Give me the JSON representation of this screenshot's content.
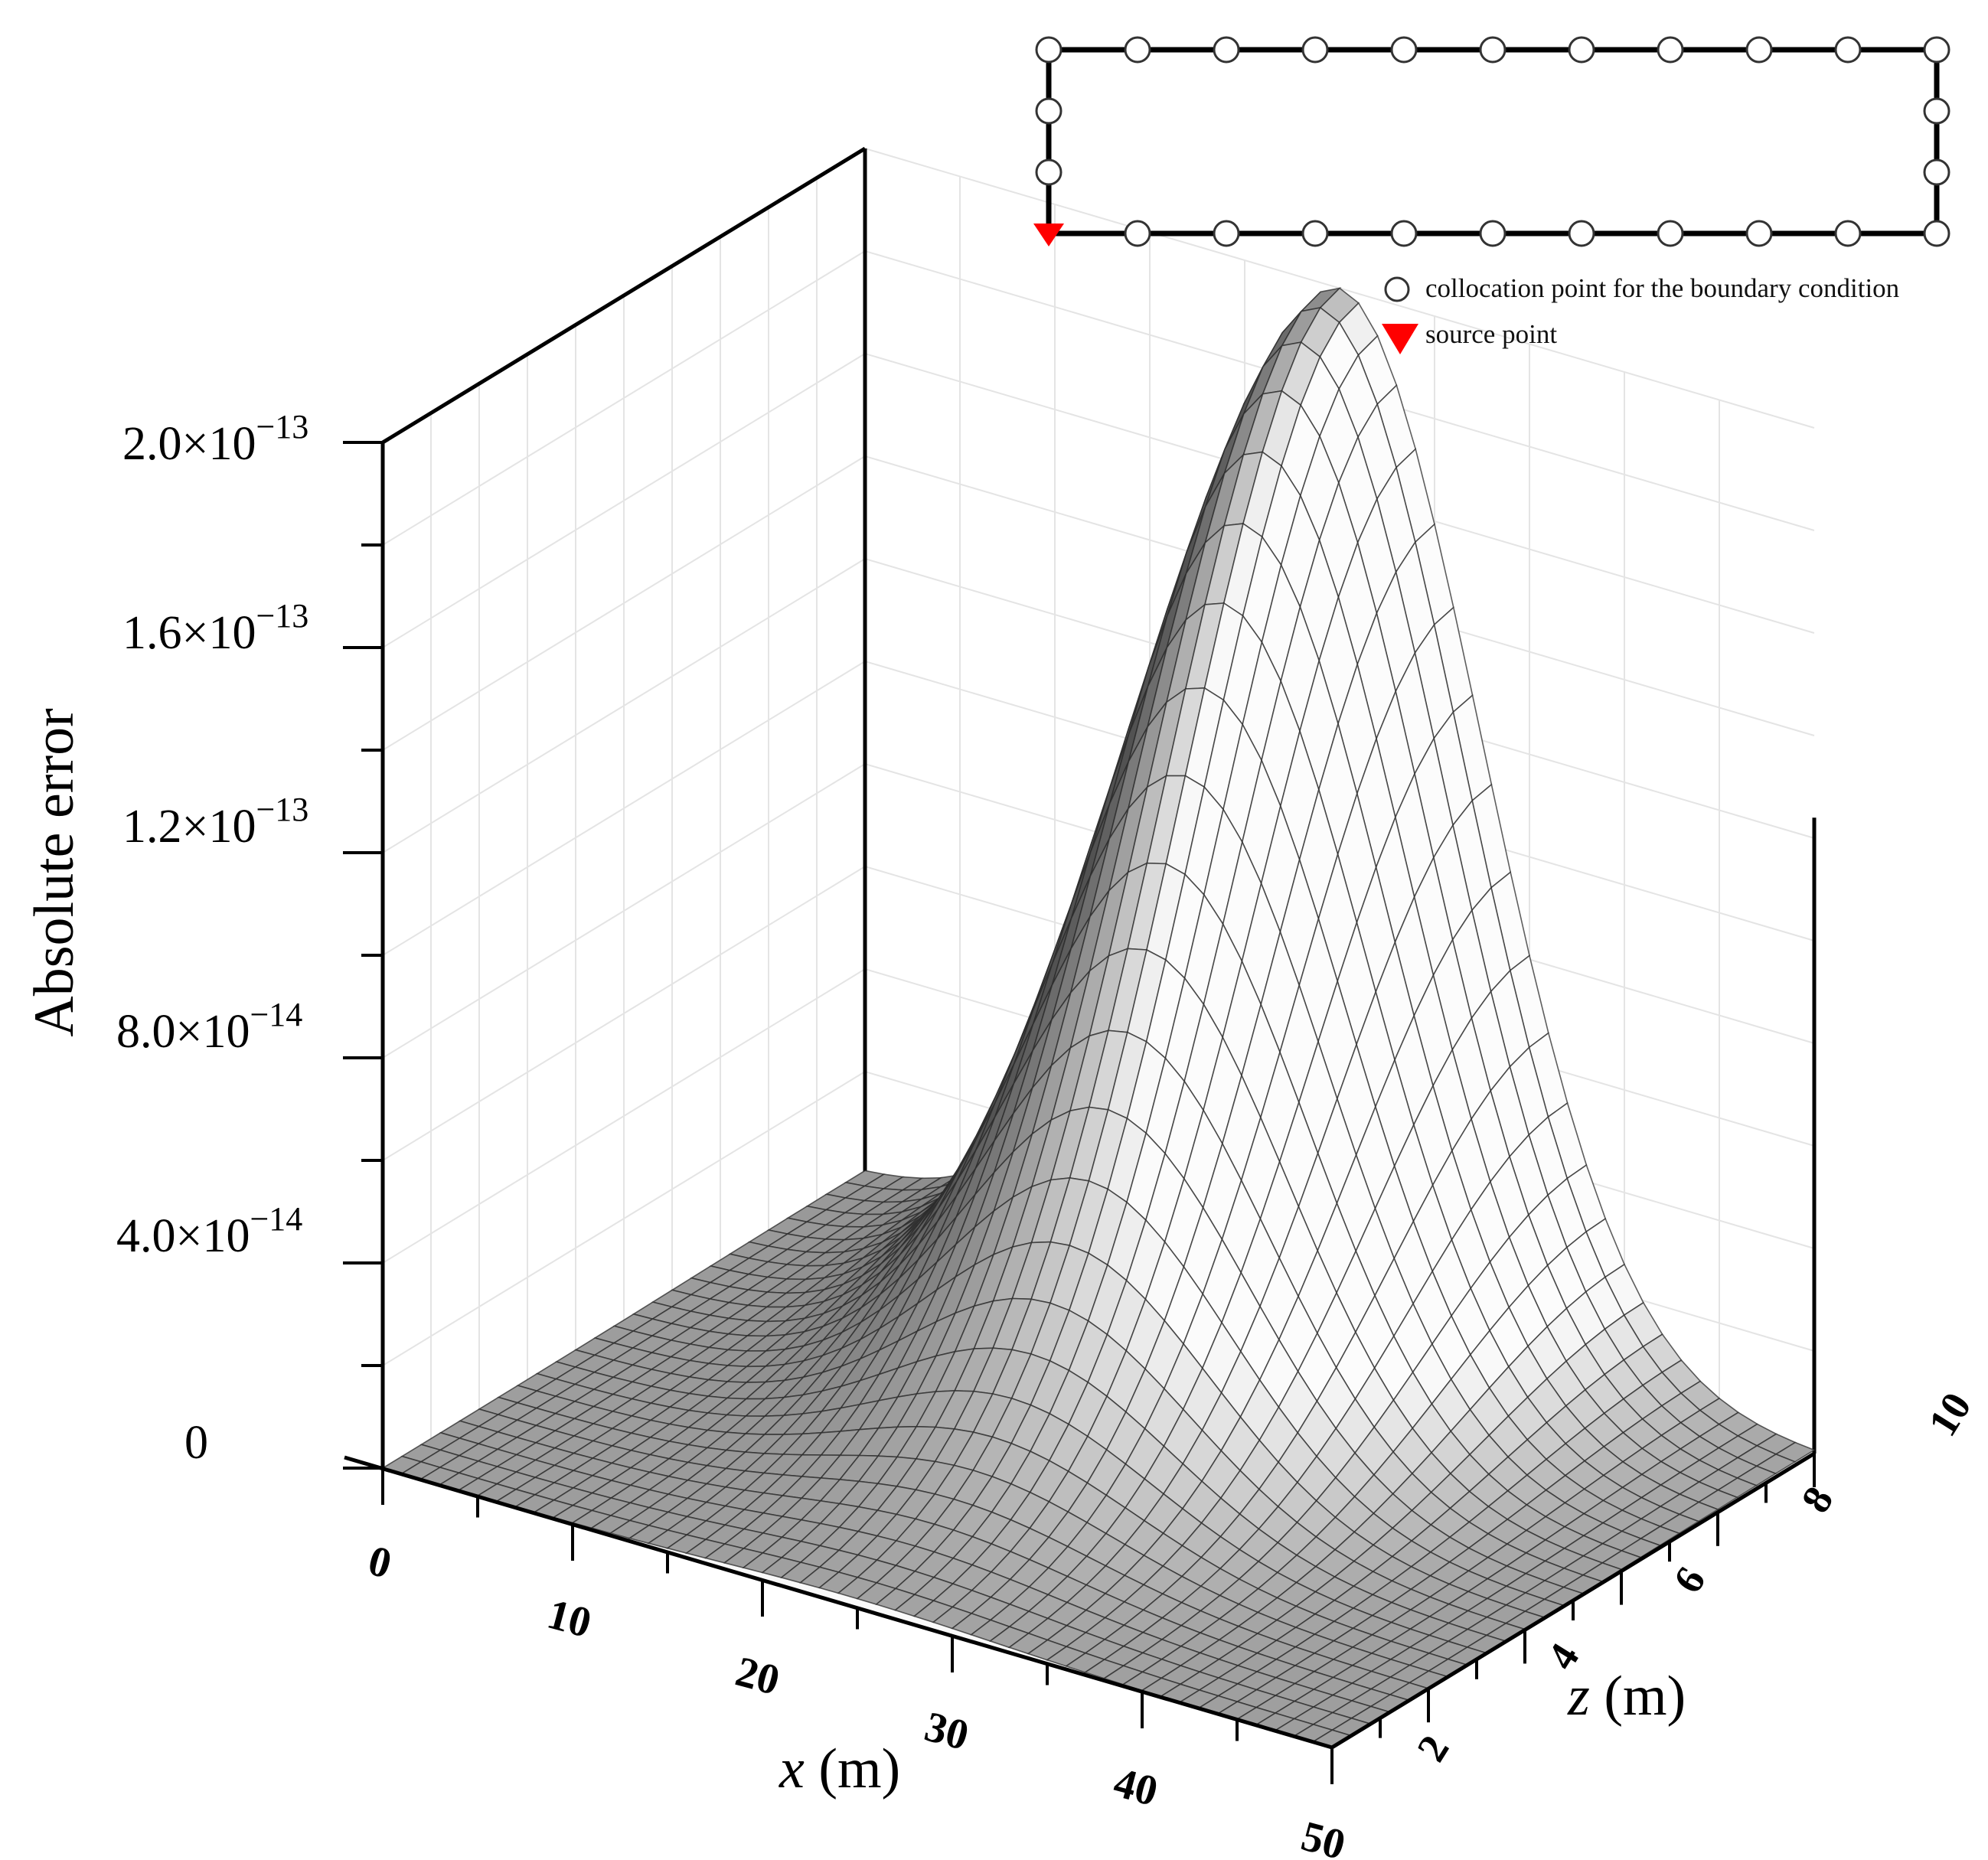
{
  "chart_data": {
    "type": "surface3d",
    "zlabel": "Absolute error",
    "xlabel_var": "x",
    "xlabel_unit": " (m)",
    "ylabel_var": "z",
    "ylabel_unit": " (m)",
    "x_ticks": [
      "0",
      "10",
      "20",
      "30",
      "40",
      "50"
    ],
    "y_ticks": [
      "2",
      "4",
      "6",
      "8",
      "10"
    ],
    "z_ticks": [
      {
        "mantissa": "0",
        "exp": ""
      },
      {
        "mantissa": "4.0×10",
        "exp": "−14"
      },
      {
        "mantissa": "8.0×10",
        "exp": "−14"
      },
      {
        "mantissa": "1.2×10",
        "exp": "−13"
      },
      {
        "mantissa": "1.6×10",
        "exp": "−13"
      },
      {
        "mantissa": "2.0×10",
        "exp": "−13"
      }
    ],
    "xlim": [
      0,
      50
    ],
    "ylim": [
      0,
      10
    ],
    "zlim": [
      0,
      2e-13
    ],
    "peak": {
      "x": 25,
      "z": 10,
      "value": 2e-13
    },
    "surface_color": "#bdbdbd",
    "inset": {
      "boundary_points_top": 11,
      "boundary_points_bottom": 11,
      "boundary_points_left": 4,
      "boundary_points_right": 4,
      "source_point_position": "bottom-left corner",
      "source_color": "#ff0000"
    },
    "legend": [
      {
        "symbol": "circle",
        "label": "collocation point for the boundary condition"
      },
      {
        "symbol": "triangle",
        "label": "source point"
      }
    ],
    "legend_placement": "top-right"
  }
}
